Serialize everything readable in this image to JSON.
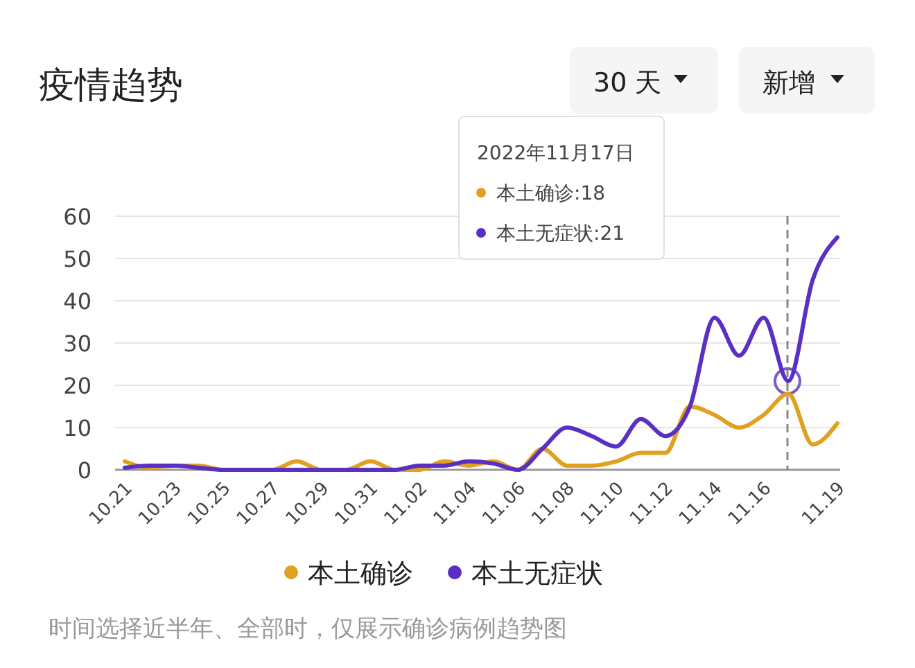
{
  "chart_data": {
    "type": "line",
    "title": "疫情趋势",
    "categories": [
      "10.21",
      null,
      "10.23",
      null,
      "10.25",
      null,
      "10.27",
      null,
      "10.29",
      null,
      "10.31",
      null,
      "11.02",
      null,
      "11.04",
      null,
      "11.06",
      null,
      "11.08",
      null,
      "11.10",
      null,
      "11.12",
      null,
      "11.14",
      null,
      "11.16",
      null,
      null,
      "11.19"
    ],
    "series": [
      {
        "name": "本土确诊",
        "color": "#e0a020",
        "values": [
          2,
          0.5,
          1,
          1,
          0,
          0,
          0,
          2,
          0,
          0,
          2,
          0,
          0,
          2,
          1,
          2,
          0,
          5,
          1,
          1,
          2,
          4,
          4,
          15,
          13,
          10,
          13,
          18,
          6,
          11
        ]
      },
      {
        "name": "本土无症状",
        "color": "#5b2fc4",
        "values": [
          0.5,
          1,
          1,
          0.5,
          0,
          0,
          0,
          0,
          0,
          0,
          0,
          0,
          1,
          1,
          2,
          1.5,
          0,
          5,
          10,
          8,
          5.5,
          12,
          8,
          15,
          36,
          27,
          36,
          21,
          45,
          55
        ]
      }
    ],
    "ylim": [
      0,
      60
    ],
    "yticks": [
      0,
      10,
      20,
      30,
      40,
      50,
      60
    ],
    "grid": "y",
    "legend": "bottom",
    "marker": "none",
    "line_style": "solid",
    "annotations": [
      "30 天",
      "新增",
      "2022年11月17日",
      "本土确诊:18",
      "本土无症状:21",
      "时间选择近半年、全部时，仅展示确诊病例趋势图"
    ]
  }
}
